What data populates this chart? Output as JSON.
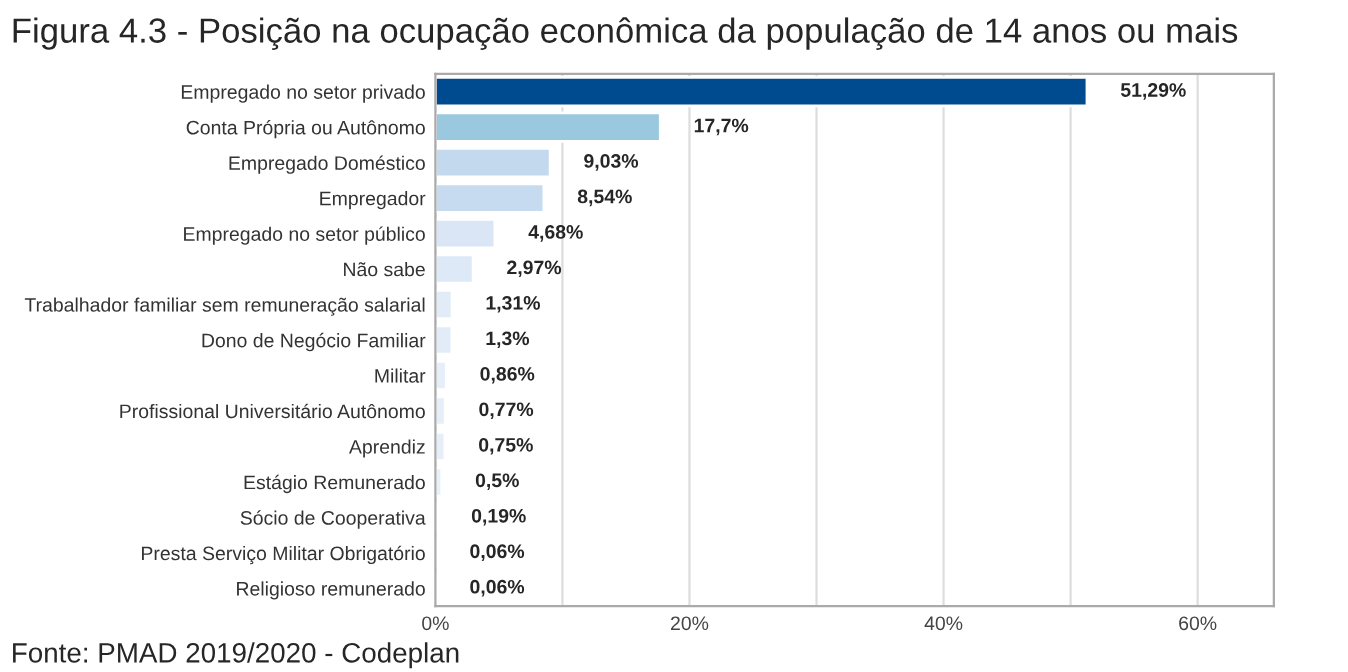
{
  "chart_data": {
    "type": "bar",
    "orientation": "horizontal",
    "title": "Figura 4.3 - Posição na ocupação econômica da população de 14 anos ou mais",
    "categories": [
      "Empregado no setor privado",
      "Conta Própria ou Autônomo",
      "Empregado Doméstico",
      "Empregador",
      "Empregado no setor público",
      "Não sabe",
      "Trabalhador familiar sem remuneração salarial",
      "Dono de Negócio Familiar",
      "Militar",
      "Profissional Universitário Autônomo",
      "Aprendiz",
      "Estágio Remunerado",
      "Sócio de Cooperativa",
      "Presta Serviço Militar Obrigatório",
      "Religioso remunerado"
    ],
    "values": [
      51.29,
      17.7,
      9.03,
      8.54,
      4.68,
      2.97,
      1.31,
      1.3,
      0.86,
      0.77,
      0.75,
      0.5,
      0.19,
      0.06,
      0.06
    ],
    "value_labels": [
      "51,29%",
      "17,7%",
      "9,03%",
      "8,54%",
      "4,68%",
      "2,97%",
      "1,31%",
      "1,3%",
      "0,86%",
      "0,77%",
      "0,75%",
      "0,5%",
      "0,19%",
      "0,06%",
      "0,06%"
    ],
    "colors": [
      "#004a8f",
      "#9ac8de",
      "#c3d9ed",
      "#c6dbef",
      "#dae6f6",
      "#dee9f7",
      "#e2ecf8",
      "#e2ecf8",
      "#e6eef9",
      "#e6eef9",
      "#e6eef9",
      "#e8f0fa",
      "#eaf1fa",
      "#ecf2fb",
      "#ecf2fb"
    ],
    "xlim": [
      0,
      66
    ],
    "xticks": [
      {
        "value": 0,
        "label": "0%"
      },
      {
        "value": 10,
        "label": null
      },
      {
        "value": 20,
        "label": "20%"
      },
      {
        "value": 30,
        "label": null
      },
      {
        "value": 40,
        "label": "40%"
      },
      {
        "value": 50,
        "label": null
      },
      {
        "value": 60,
        "label": "60%"
      }
    ],
    "grid": "x",
    "legend": false,
    "annotations": [
      "Fonte: PMAD 2019/2020 - Codeplan"
    ]
  }
}
